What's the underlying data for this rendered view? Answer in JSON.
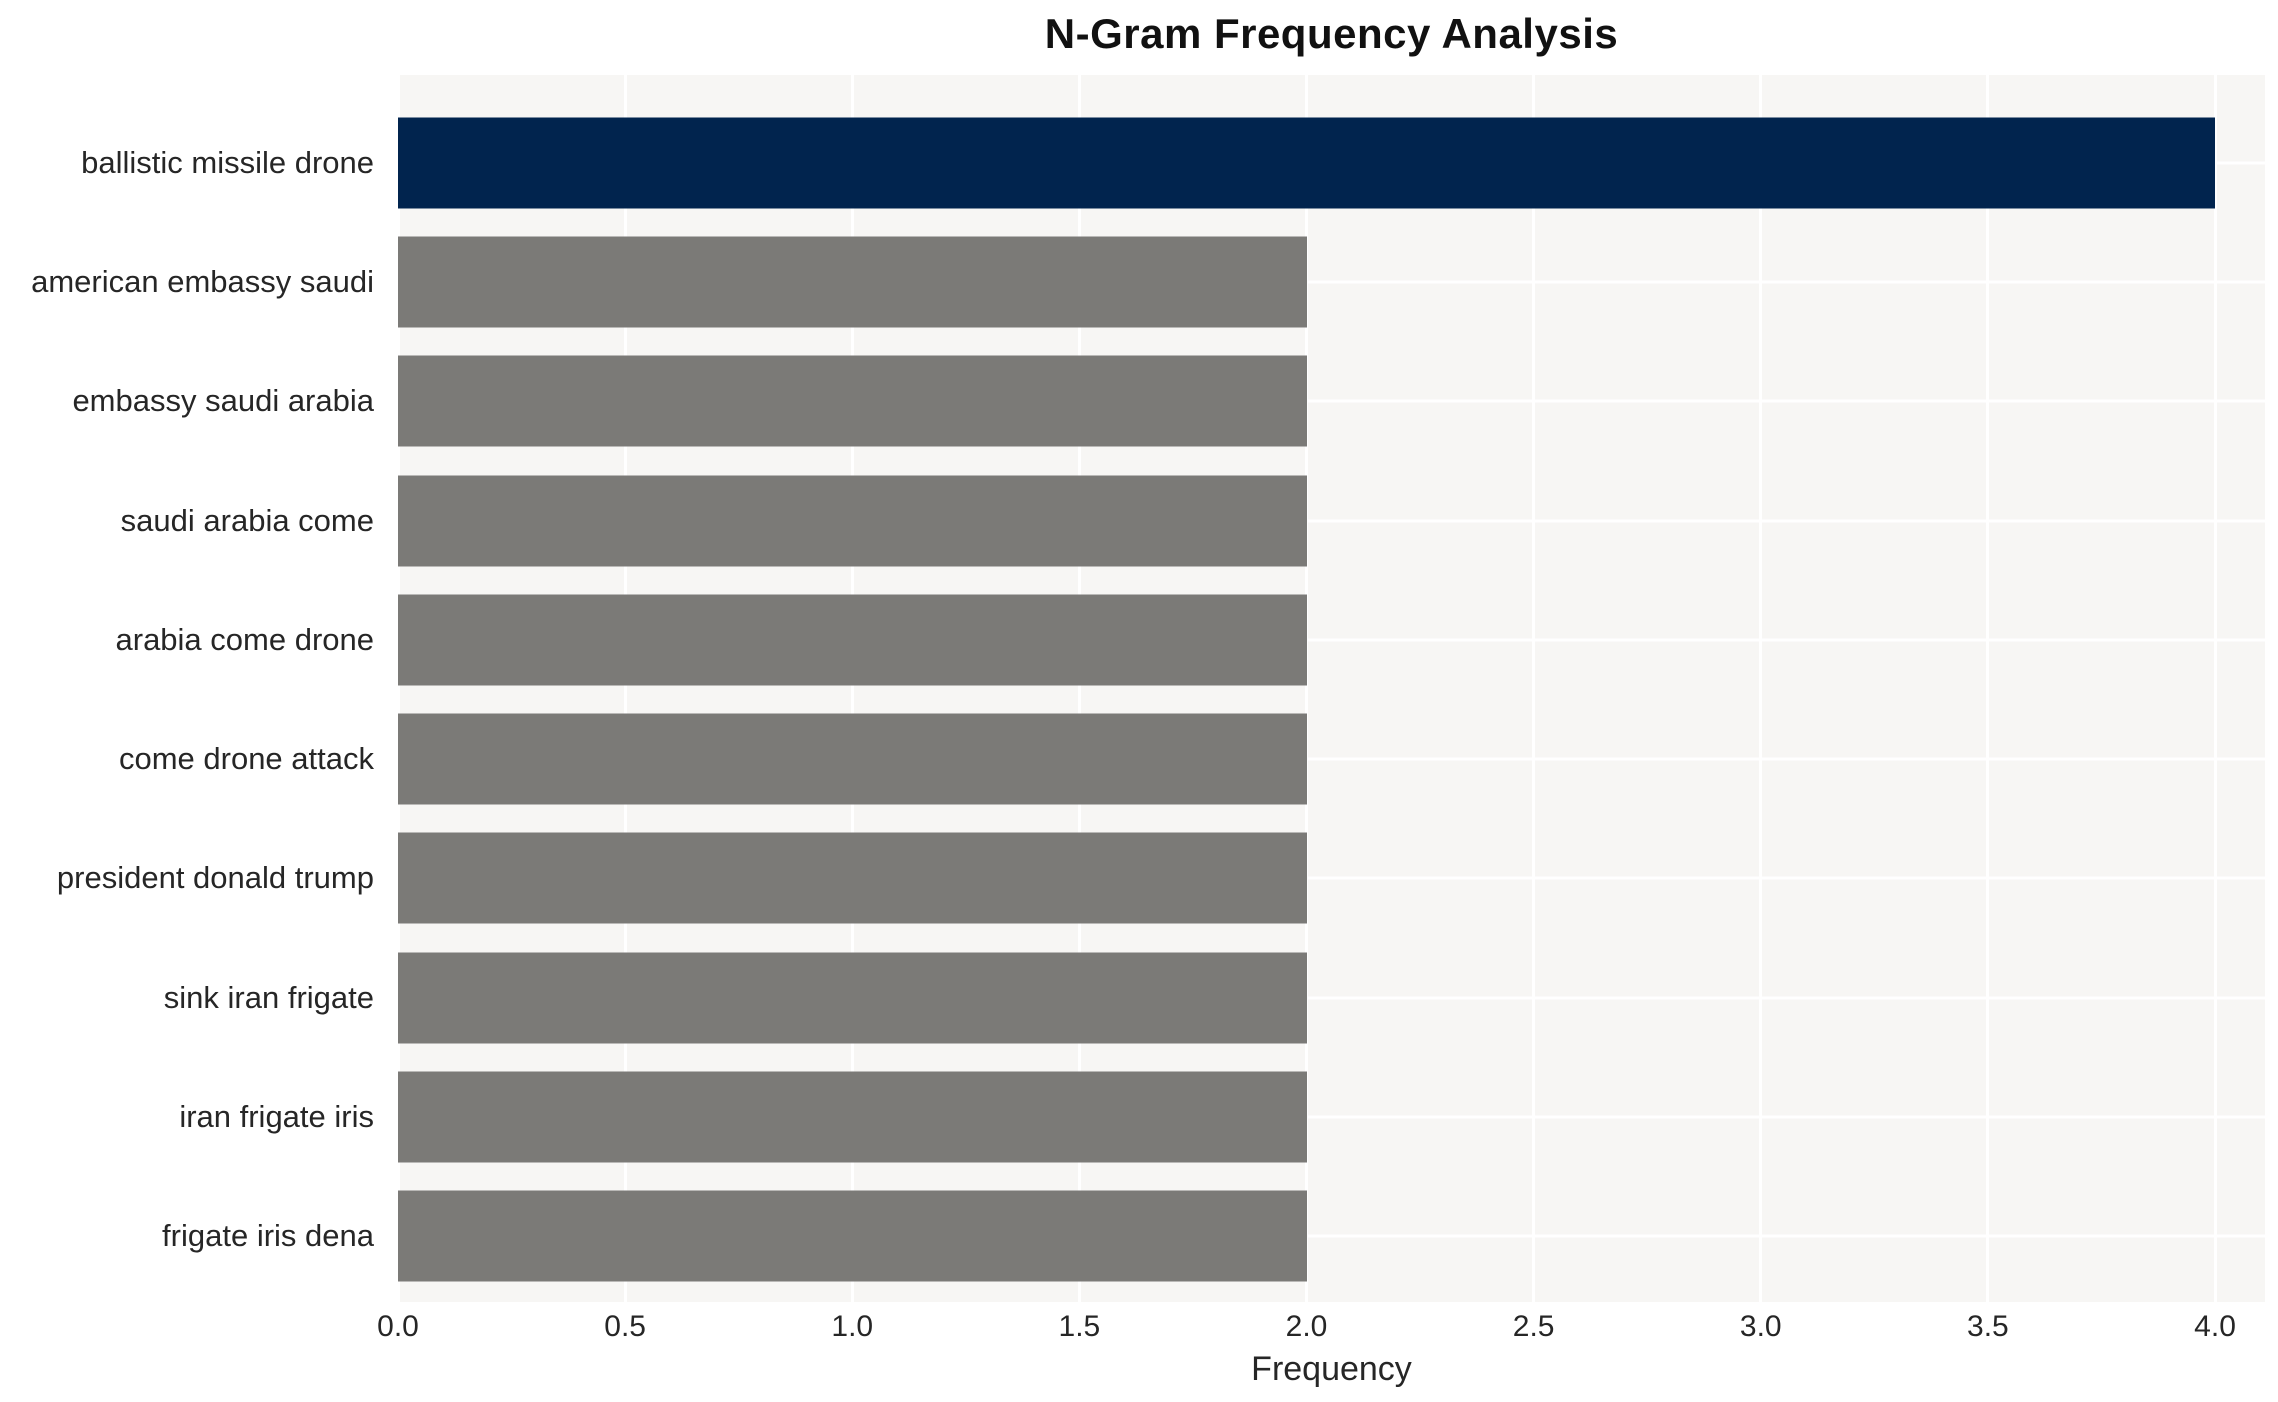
{
  "chart_data": {
    "type": "bar",
    "orientation": "horizontal",
    "title": "N-Gram Frequency Analysis",
    "xlabel": "Frequency",
    "ylabel": "",
    "categories": [
      "ballistic missile drone",
      "american embassy saudi",
      "embassy saudi arabia",
      "saudi arabia come",
      "arabia come drone",
      "come drone attack",
      "president donald trump",
      "sink iran frigate",
      "iran frigate iris",
      "frigate iris dena"
    ],
    "values": [
      4,
      2,
      2,
      2,
      2,
      2,
      2,
      2,
      2,
      2
    ],
    "highlight_index": 0,
    "xlim": [
      0,
      4.11
    ],
    "xticks": [
      "0.0",
      "0.5",
      "1.0",
      "1.5",
      "2.0",
      "2.5",
      "3.0",
      "3.5",
      "4.0"
    ],
    "xtick_values": [
      0,
      0.5,
      1.0,
      1.5,
      2.0,
      2.5,
      3.0,
      3.5,
      4.0
    ],
    "grid": true,
    "legend": false,
    "colors": {
      "highlight_bar": "#01244E",
      "default_bar": "#7B7A77",
      "plot_background": "#F7F6F4",
      "gridline": "#FFFFFF",
      "tick_text": "#262626",
      "title_text": "#111111"
    }
  }
}
